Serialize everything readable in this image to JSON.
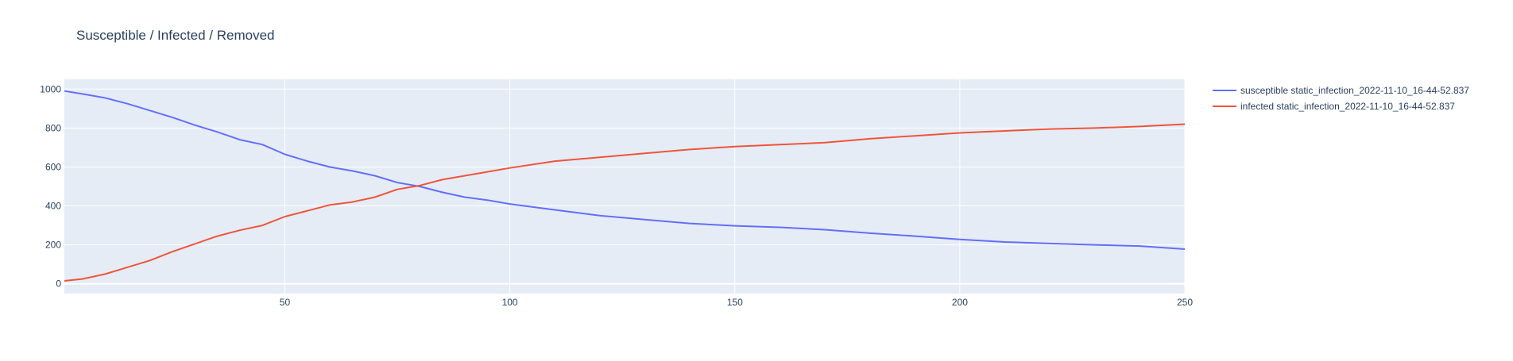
{
  "colors": {
    "plot_background": "#e5ecf6",
    "gridline": "#ffffff",
    "text": "#2a3f5f"
  },
  "chart_data": {
    "type": "line",
    "title": "Susceptible / Infected / Removed",
    "xlabel": "",
    "ylabel": "",
    "xlim": [
      1,
      250
    ],
    "ylim": [
      -50,
      1050
    ],
    "x_ticks": [
      50,
      100,
      150,
      200,
      250
    ],
    "y_ticks": [
      0,
      200,
      400,
      600,
      800,
      1000
    ],
    "grid": true,
    "legend": "top-right, outside plot",
    "series": [
      {
        "name": "susceptible static_infection_2022-11-10_16-44-52.837",
        "color": "#636efa",
        "x": [
          1,
          5,
          10,
          15,
          20,
          25,
          30,
          35,
          40,
          45,
          50,
          55,
          60,
          65,
          70,
          75,
          80,
          85,
          90,
          95,
          100,
          110,
          120,
          130,
          140,
          150,
          160,
          170,
          180,
          190,
          200,
          210,
          220,
          230,
          240,
          250
        ],
        "values": [
          990,
          975,
          955,
          925,
          890,
          855,
          815,
          780,
          740,
          715,
          665,
          630,
          600,
          580,
          555,
          520,
          500,
          470,
          445,
          430,
          410,
          380,
          350,
          330,
          310,
          298,
          290,
          278,
          260,
          245,
          228,
          215,
          207,
          200,
          194,
          178
        ]
      },
      {
        "name": "infected static_infection_2022-11-10_16-44-52.837",
        "color": "#ef553b",
        "x": [
          1,
          5,
          10,
          15,
          20,
          25,
          30,
          35,
          40,
          45,
          50,
          55,
          60,
          65,
          70,
          75,
          80,
          85,
          90,
          95,
          100,
          110,
          120,
          130,
          140,
          150,
          160,
          170,
          180,
          190,
          200,
          210,
          220,
          230,
          240,
          250
        ],
        "values": [
          15,
          25,
          50,
          85,
          120,
          165,
          205,
          245,
          275,
          300,
          345,
          375,
          405,
          420,
          445,
          485,
          505,
          535,
          555,
          575,
          595,
          630,
          650,
          670,
          690,
          705,
          715,
          725,
          745,
          760,
          775,
          785,
          795,
          800,
          808,
          820
        ]
      }
    ]
  }
}
